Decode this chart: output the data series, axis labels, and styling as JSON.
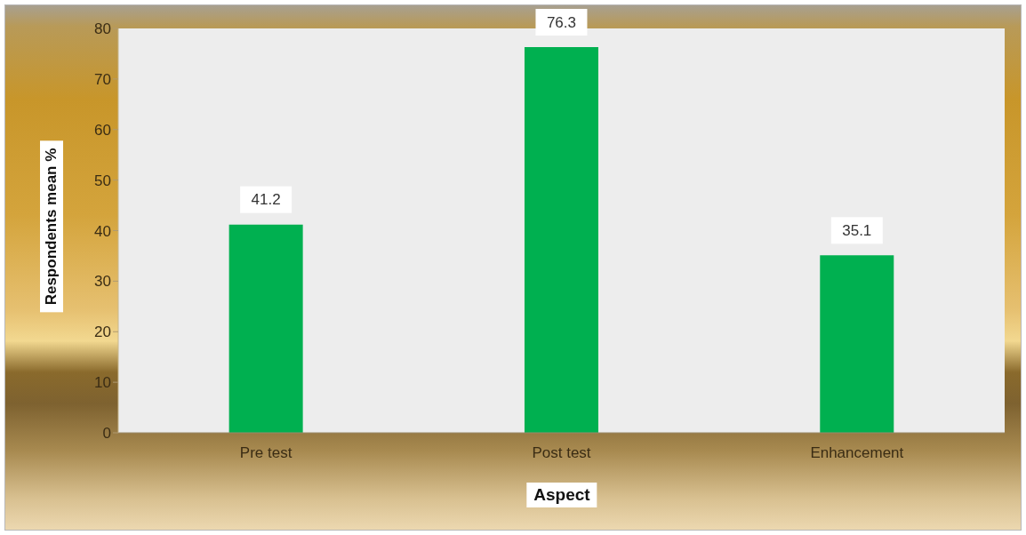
{
  "chart_data": {
    "type": "bar",
    "categories": [
      "Pre test",
      "Post test",
      "Enhancement"
    ],
    "values": [
      41.2,
      76.3,
      35.1
    ],
    "color": "#00b050",
    "xlabel": "Aspect",
    "ylabel": "Respondents mean %",
    "ylim": [
      0,
      80
    ],
    "yticks": [
      0,
      10,
      20,
      30,
      40,
      50,
      60,
      70,
      80
    ],
    "data_labels": true
  }
}
